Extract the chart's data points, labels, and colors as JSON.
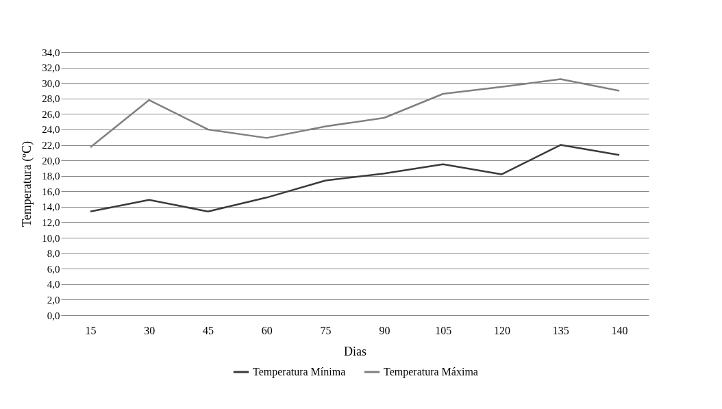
{
  "chart_data": {
    "type": "line",
    "xlabel": "Dias",
    "ylabel": "Temperatura (ºC)",
    "categories": [
      "15",
      "30",
      "45",
      "60",
      "75",
      "90",
      "105",
      "120",
      "135",
      "140"
    ],
    "series": [
      {
        "name": "Temperatura Mínima",
        "color": "#3a3a3a",
        "values": [
          13.4,
          14.9,
          13.4,
          15.2,
          17.4,
          18.3,
          19.5,
          18.2,
          22.0,
          20.7
        ]
      },
      {
        "name": "Temperatura Máxima",
        "color": "#808080",
        "values": [
          21.7,
          27.8,
          24.0,
          22.9,
          24.4,
          25.5,
          28.6,
          29.5,
          30.5,
          29.0
        ]
      }
    ],
    "ylim": [
      0,
      34
    ],
    "yticks": [
      {
        "value": 0,
        "label": "0,0"
      },
      {
        "value": 2,
        "label": "2,0"
      },
      {
        "value": 4,
        "label": "4,0"
      },
      {
        "value": 6,
        "label": "6,0"
      },
      {
        "value": 8,
        "label": "8,0"
      },
      {
        "value": 10,
        "label": "10,0"
      },
      {
        "value": 12,
        "label": "12,0"
      },
      {
        "value": 14,
        "label": "14,0"
      },
      {
        "value": 16,
        "label": "16,0"
      },
      {
        "value": 18,
        "label": "18,0"
      },
      {
        "value": 20,
        "label": "20,0"
      },
      {
        "value": 22,
        "label": "22,0"
      },
      {
        "value": 24,
        "label": "24,0"
      },
      {
        "value": 26,
        "label": "26,0"
      },
      {
        "value": 28,
        "label": "28,0"
      },
      {
        "value": 30,
        "label": "30,0"
      },
      {
        "value": 32,
        "label": "32,0"
      },
      {
        "value": 34,
        "label": "34,0"
      }
    ],
    "grid": "y",
    "legend": "bottom",
    "marker": "none",
    "line_style": "solid"
  }
}
